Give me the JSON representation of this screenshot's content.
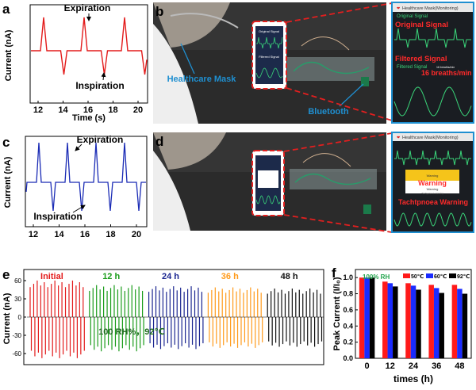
{
  "panel_letters": {
    "a": "a",
    "b": "b",
    "c": "c",
    "d": "d",
    "e": "e",
    "f": "f"
  },
  "colors": {
    "trace_red": "#e31b1b",
    "trace_blue": "#1a2bb5",
    "phone_frame": "#e21f1f",
    "callout_blue": "#1f8fd0",
    "label_red": "#ff2a2a",
    "accent_green": "#1fa34a",
    "series_50": "#ff1a1a",
    "series_60": "#1a2bff",
    "series_92": "#000000"
  },
  "panel_a": {
    "ylabel": "Current (nA)",
    "xlabel": "Time (s)",
    "xticks": [
      "12",
      "14",
      "16",
      "18",
      "20"
    ],
    "annot_expiration": "Expiration",
    "annot_inspiration": "Inspiration"
  },
  "panel_b": {
    "app_title": "Healthcare Mask(Monitoring)",
    "label_mask": "Healthcare Mask",
    "label_bluetooth": "Bluetooth",
    "phone_original": "Original Signal",
    "phone_filtered": "Filtered Signal",
    "zoom_original_small": "Original Signal",
    "zoom_original_big": "Original Signal",
    "zoom_filtered_big": "Filtered Signal",
    "zoom_filtered_small": "Filtered Signal",
    "zoom_rate": "16 breaths/min",
    "zoom_rate_small": "16 breaths/min"
  },
  "panel_c": {
    "ylabel": "Current (nA)",
    "xticks": [
      "12",
      "14",
      "16",
      "18",
      "20"
    ],
    "annot_expiration": "Expiration",
    "annot_inspiration": "Inspiration"
  },
  "panel_d": {
    "app_title": "Healthcare Mask(Monitoring)",
    "warning_popup_title": "Warning",
    "warning_popup_sub": "Warning",
    "warning_popup_detail": "Tachypnoea warning",
    "warning_big": "Warning",
    "tachypnoea_big": "Tachtpnoea Warning"
  },
  "panel_e": {
    "ylabel": "Current (nA)",
    "yticks": [
      "60",
      "30",
      "0",
      "-30",
      "-60"
    ],
    "segments": [
      {
        "label": "Initial",
        "color": "#e31b1b"
      },
      {
        "label": "12 h",
        "color": "#1a9c1a"
      },
      {
        "label": "24 h",
        "color": "#1a2590"
      },
      {
        "label": "36 h",
        "color": "#ff9a1a"
      },
      {
        "label": "48 h",
        "color": "#111111"
      }
    ],
    "condition": "100 RH%，92℃"
  },
  "chart_data": {
    "type": "bar",
    "title": "",
    "annotation": "100% RH",
    "xlabel": "times (h)",
    "ylabel": "Peak Current (I/I₀)",
    "ylim": [
      0,
      1.1
    ],
    "yticks": [
      "0.0",
      "0.2",
      "0.4",
      "0.6",
      "0.8",
      "1.0"
    ],
    "categories": [
      "0",
      "12",
      "24",
      "36",
      "48"
    ],
    "series": [
      {
        "name": "50℃",
        "values": [
          1.0,
          0.95,
          0.93,
          0.91,
          0.91
        ]
      },
      {
        "name": "60℃",
        "values": [
          1.0,
          0.93,
          0.9,
          0.87,
          0.86
        ]
      },
      {
        "name": "92℃",
        "values": [
          1.0,
          0.89,
          0.85,
          0.81,
          0.8
        ]
      }
    ],
    "legend_position": "top-right"
  }
}
